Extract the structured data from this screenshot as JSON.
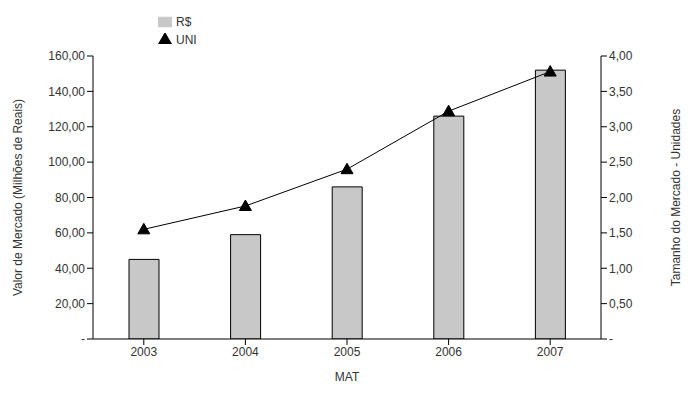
{
  "chart_data": {
    "type": "bar",
    "categories": [
      "2003",
      "2004",
      "2005",
      "2006",
      "2007"
    ],
    "x_label": "MAT",
    "y_label": "Valor de Mercado (Milhões de Reais)",
    "y2_label": "Tamanho do Mercado - Unidades",
    "ylim": [
      0,
      160
    ],
    "yticks": [
      {
        "value": 0,
        "label": "-"
      },
      {
        "value": 20,
        "label": "20,00"
      },
      {
        "value": 40,
        "label": "40,00"
      },
      {
        "value": 60,
        "label": "60,00"
      },
      {
        "value": 80,
        "label": "80,00"
      },
      {
        "value": 100,
        "label": "100,00"
      },
      {
        "value": 120,
        "label": "120,00"
      },
      {
        "value": 140,
        "label": "140,00"
      },
      {
        "value": 160,
        "label": "160,00"
      }
    ],
    "y2lim": [
      0,
      4
    ],
    "y2ticks": [
      {
        "value": 0,
        "label": "-"
      },
      {
        "value": 0.5,
        "label": "0,50"
      },
      {
        "value": 1,
        "label": "1,00"
      },
      {
        "value": 1.5,
        "label": "1,50"
      },
      {
        "value": 2,
        "label": "2,00"
      },
      {
        "value": 2.5,
        "label": "2,50"
      },
      {
        "value": 3,
        "label": "3,00"
      },
      {
        "value": 3.5,
        "label": "3,50"
      },
      {
        "value": 4,
        "label": "4,00"
      }
    ],
    "grid": false,
    "legend": "upper left",
    "series": [
      {
        "name": "R$",
        "type": "bar",
        "color": "#c8c8c8",
        "values": [
          45,
          59,
          86,
          126,
          152
        ]
      },
      {
        "name": "UNI",
        "type": "line",
        "color": "#000000",
        "marker": "triangle",
        "axis": "y2",
        "values": [
          1.55,
          1.88,
          2.4,
          3.22,
          3.78
        ]
      }
    ]
  }
}
